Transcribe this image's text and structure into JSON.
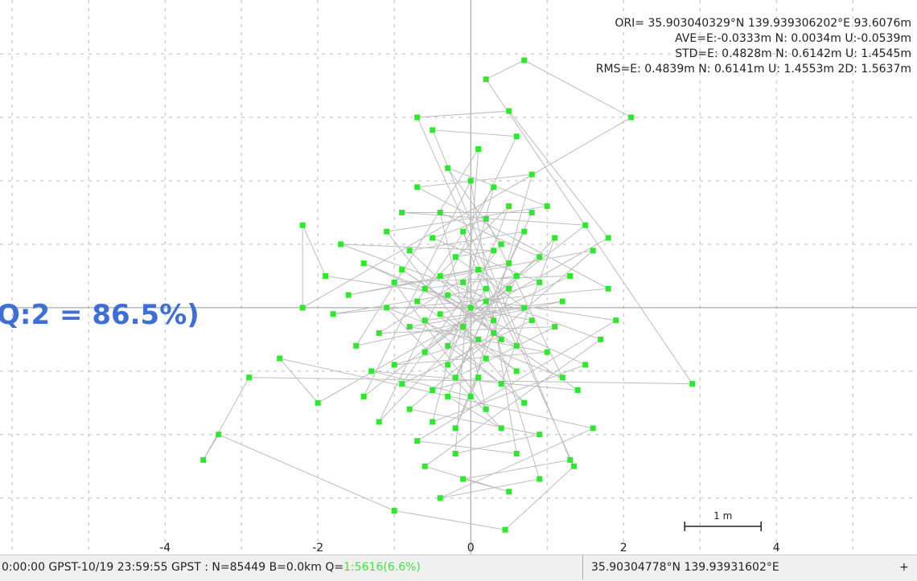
{
  "chart_data": {
    "type": "scatter",
    "x": [
      -0.3,
      0.4,
      -0.8,
      0.7,
      -0.2,
      1.1,
      -1.2,
      0.1,
      0.5,
      -0.6,
      0.9,
      -0.4,
      0.2,
      -1.0,
      1.3,
      -0.1,
      0.6,
      -0.7,
      0.3,
      -0.5,
      1.5,
      -1.4,
      0.0,
      0.8,
      -0.9,
      0.4,
      -0.3,
      1.0,
      -1.1,
      0.2,
      0.7,
      -0.6,
      1.2,
      -1.5,
      0.1,
      -0.2,
      0.9,
      -0.8,
      1.6,
      -1.6,
      0.5,
      -0.4,
      0.3,
      -0.1,
      0.6,
      -0.9,
      1.4,
      -1.3,
      0.0,
      0.8,
      -0.7,
      1.8,
      -1.8,
      0.2,
      -0.3,
      0.4,
      1.1,
      -1.2,
      0.6,
      -0.5,
      1.3,
      -0.1,
      0.5,
      -0.6,
      1.7,
      -1.7,
      0.3,
      -0.2,
      0.7,
      -0.8,
      1.0,
      -1.0,
      0.1,
      -0.4,
      0.9,
      -0.5,
      0.2,
      1.2,
      -1.1,
      0.4,
      -0.3,
      0.8,
      -0.9,
      1.5,
      -1.4,
      0.0,
      0.6,
      -0.7,
      1.9,
      -1.9,
      -2.2,
      -2.2,
      2.1,
      0.7,
      0.2,
      2.9,
      -2.9,
      -3.5,
      -3.3,
      -1.0,
      0.45,
      1.35,
      -0.7,
      0.5,
      1.8,
      -2.0,
      -2.5,
      1.6,
      -0.4,
      0.9,
      0.2,
      -0.1,
      0.3,
      -0.3,
      0.5,
      -0.6,
      0.6,
      -0.2,
      0.1,
      -0.5
    ],
    "y": [
      0.2,
      -0.5,
      0.9,
      1.2,
      -1.1,
      -0.3,
      -0.4,
      0.6,
      0.3,
      -0.7,
      0.8,
      1.5,
      -1.6,
      0.4,
      0.5,
      -0.3,
      -1.0,
      0.1,
      1.9,
      -1.8,
      -0.9,
      0.7,
      0.0,
      -0.2,
      -1.2,
      1.0,
      2.2,
      1.6,
      1.2,
      -0.8,
      -1.5,
      -0.2,
      0.1,
      -0.6,
      2.5,
      -2.3,
      -2.0,
      -1.6,
      0.9,
      0.2,
      0.7,
      0.5,
      -0.2,
      1.2,
      -0.6,
      0.6,
      -1.3,
      -1.0,
      -1.4,
      2.1,
      1.9,
      0.3,
      -0.1,
      0.3,
      -0.6,
      -1.2,
      1.1,
      -1.8,
      2.7,
      2.8,
      -2.4,
      -2.7,
      -2.9,
      -2.5,
      -0.5,
      1.0,
      0.9,
      0.8,
      0.0,
      -0.3,
      -0.7,
      -0.9,
      -0.5,
      -0.1,
      0.4,
      1.1,
      1.4,
      -1.1,
      0.0,
      -1.9,
      -1.4,
      1.5,
      1.5,
      1.3,
      -1.4,
      2.0,
      -2.3,
      -2.1,
      -0.2,
      0.5,
      1.3,
      0.0,
      3.0,
      3.9,
      3.6,
      -1.2,
      -1.1,
      -2.4,
      -2.0,
      -3.2,
      -3.5,
      -2.5,
      3.0,
      3.1,
      1.1,
      -1.5,
      -0.8,
      -1.9,
      -3.0,
      -2.7,
      0.1,
      0.4,
      -0.4,
      -0.9,
      1.6,
      0.3,
      0.5,
      -1.9,
      -1.1,
      -1.3
    ],
    "color": "#2ee82e",
    "line_color": "#bdbdbd",
    "xlim": [
      -6.16,
      5.84
    ],
    "ylim": [
      -3.89,
      4.85
    ],
    "xticks": [
      -4,
      -2,
      0,
      2,
      4
    ],
    "xgrid": [
      -6,
      -5,
      -4,
      -3,
      -2,
      -1,
      0,
      1,
      2,
      3,
      4,
      5
    ],
    "ygrid": [
      -3,
      -2,
      -1,
      0,
      1,
      2,
      3,
      4
    ],
    "annotations": [
      "ORI= 35.903040329°N  139.939306202°E 93.6076m",
      "AVE=E:-0.0333m N: 0.0034m U:-0.0539m",
      "STD=E: 0.4828m N: 0.6142m U: 1.4545m",
      "RMS=E: 0.4839m N: 0.6141m U: 1.4553m 2D: 1.5637m"
    ],
    "scale_length": 1,
    "scale_label": "1 m"
  },
  "overlay": "Q:2 = 86.5%)",
  "status": {
    "left": "0:00:00 GPST-10/19 23:59:55 GPST : N=85449 B=0.0km Q=",
    "quality": "1:5616(6.6%)",
    "position": "35.90304778°N 139.93931602°E",
    "plus": "+"
  }
}
